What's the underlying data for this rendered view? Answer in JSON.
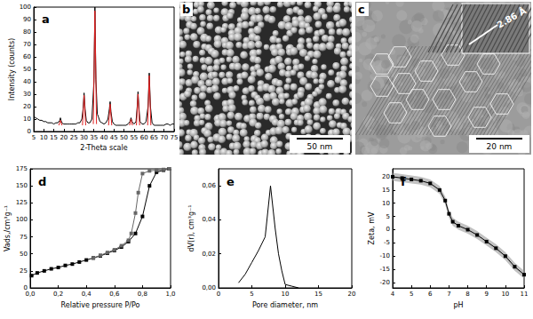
{
  "chart_data": [
    {
      "type": "line",
      "title": "a",
      "xlabel": "2-Theta scale",
      "ylabel": "Intensity (counts)",
      "xlim": [
        5,
        75
      ],
      "xticks": [
        5,
        10,
        15,
        20,
        25,
        30,
        35,
        40,
        45,
        50,
        55,
        60,
        65,
        70,
        75
      ],
      "ylim": [
        0,
        100
      ],
      "yticks": [
        0,
        10,
        20,
        30,
        40,
        50,
        60,
        70,
        80,
        90,
        100
      ],
      "grid": false,
      "series": [
        {
          "color": "#000000",
          "marker": "none",
          "line_style": "solid",
          "x": [
            5,
            6,
            7,
            8,
            9,
            10,
            11,
            12,
            13,
            14,
            15,
            16,
            17,
            18,
            18.3,
            18.6,
            19,
            20,
            21,
            22,
            23,
            24,
            25,
            26,
            27,
            28,
            29,
            29.6,
            30.1,
            30.6,
            31.2,
            32,
            33,
            34,
            35,
            35.5,
            36,
            36.7,
            37.2,
            38,
            39,
            40,
            41,
            42,
            42.7,
            43.1,
            43.5,
            44.2,
            45,
            46,
            47,
            48,
            49,
            50,
            51,
            52,
            53,
            53.5,
            54,
            55,
            56,
            56.6,
            57,
            57.4,
            58,
            59,
            60,
            61,
            62,
            62.6,
            63.2,
            64,
            65,
            66,
            67,
            68,
            69,
            70,
            71,
            72,
            73,
            74,
            75
          ],
          "values": [
            12,
            11,
            10,
            9,
            9,
            8,
            8,
            7,
            7,
            7,
            6,
            7,
            7,
            9,
            11,
            9,
            7,
            6,
            6,
            6,
            6,
            6,
            6,
            6,
            7,
            7,
            10,
            18,
            31,
            18,
            9,
            7,
            7,
            10,
            40,
            100,
            42,
            14,
            12,
            8,
            7,
            6,
            7,
            10,
            18,
            24,
            16,
            8,
            6,
            5,
            5,
            5,
            5,
            5,
            5,
            6,
            8,
            11,
            8,
            6,
            8,
            20,
            32,
            20,
            8,
            6,
            6,
            8,
            20,
            47,
            20,
            7,
            5,
            5,
            5,
            5,
            5,
            5,
            6,
            6,
            5,
            6,
            6
          ]
        },
        {
          "color": "#e02020",
          "marker": "none",
          "line_style": "solid",
          "x": [
            17.5,
            18.3,
            19.1,
            19.2,
            29.3,
            30.1,
            30.9,
            31,
            34.7,
            35.5,
            36.3,
            36.4,
            42.3,
            43.1,
            43.9,
            44,
            52.8,
            53.5,
            54.2,
            54.3,
            56.2,
            57,
            57.8,
            57.9,
            61.8,
            62.6,
            63.4
          ],
          "values": [
            5,
            9,
            5,
            null,
            5,
            29,
            5,
            null,
            6,
            97,
            6,
            null,
            5,
            22,
            5,
            null,
            5,
            10,
            5,
            null,
            5,
            30,
            5,
            null,
            5,
            45,
            5
          ]
        }
      ]
    },
    {
      "type": "line",
      "title": "d",
      "xlabel": "Relative pressure P/Po",
      "ylabel": "Vads,/cm³g⁻¹",
      "xlim": [
        0,
        1
      ],
      "xticks": [
        {
          "value": 0,
          "label": "0,0"
        },
        {
          "value": 0.2,
          "label": "0,2"
        },
        {
          "value": 0.4,
          "label": "0,4"
        },
        {
          "value": 0.6,
          "label": "0,6"
        },
        {
          "value": 0.8,
          "label": "0,8"
        },
        {
          "value": 1,
          "label": "1,0"
        }
      ],
      "ylim": [
        0,
        175
      ],
      "yticks": [
        0,
        25,
        50,
        75,
        100,
        125,
        150,
        175
      ],
      "grid": false,
      "series": [
        {
          "color": "#000000",
          "marker": "square",
          "line_style": "solid",
          "x": [
            0.01,
            0.05,
            0.1,
            0.15,
            0.2,
            0.25,
            0.3,
            0.35,
            0.4,
            0.45,
            0.5,
            0.55,
            0.6,
            0.65,
            0.7,
            0.75,
            0.8,
            0.85,
            0.9,
            0.95,
            0.99
          ],
          "values": [
            18,
            22,
            25,
            28,
            30,
            33,
            35,
            38,
            41,
            44,
            47,
            51,
            55,
            60,
            68,
            80,
            105,
            150,
            170,
            173,
            175
          ]
        },
        {
          "color": "#666666",
          "marker": "square",
          "line_style": "solid",
          "x": [
            0.99,
            0.95,
            0.9,
            0.85,
            0.8,
            0.77,
            0.75,
            0.72,
            0.7,
            0.65,
            0.6,
            0.55,
            0.5,
            0.45
          ],
          "values": [
            175,
            174,
            173,
            172,
            168,
            140,
            110,
            80,
            70,
            62,
            56,
            52,
            48,
            44
          ]
        }
      ]
    },
    {
      "type": "line",
      "title": "e",
      "xlabel": "Pore diameter, nm",
      "ylabel": "dV(r), cm³g⁻¹",
      "xlim": [
        0,
        20
      ],
      "xticks": [
        0,
        5,
        10,
        15,
        20
      ],
      "ylim": [
        0,
        0.07
      ],
      "yticks": [
        {
          "value": 0,
          "label": "0,00"
        },
        {
          "value": 0.02,
          "label": "0,02"
        },
        {
          "value": 0.04,
          "label": "0,04"
        },
        {
          "value": 0.06,
          "label": "0,06"
        }
      ],
      "grid": false,
      "series": [
        {
          "color": "#000000",
          "marker": "none",
          "line_style": "solid",
          "x": [
            3,
            4,
            5,
            6,
            7,
            7.8,
            8.5,
            9,
            9.5,
            10,
            11,
            12
          ],
          "values": [
            0.003,
            0.008,
            0.015,
            0.022,
            0.03,
            0.06,
            0.035,
            0.02,
            0.01,
            0.002,
            0.001,
            0
          ]
        }
      ]
    },
    {
      "type": "line",
      "title": "f",
      "xlabel": "pH",
      "ylabel": "Zeta, mV",
      "xlim": [
        4,
        11
      ],
      "xticks": [
        4,
        5,
        6,
        7,
        8,
        9,
        10,
        11
      ],
      "ylim": [
        -22,
        23
      ],
      "yticks": [
        -20,
        -15,
        -10,
        -5,
        0,
        5,
        10,
        15,
        20
      ],
      "grid": false,
      "series": [
        {
          "color": "#000000",
          "marker": "square",
          "line_style": "solid",
          "x": [
            4,
            4.5,
            5,
            5.5,
            6,
            6.5,
            6.8,
            7,
            7.2,
            7.5,
            8,
            8.5,
            9,
            9.5,
            10,
            10.5,
            11
          ],
          "values": [
            20,
            19.5,
            19,
            18.5,
            17.5,
            15,
            11,
            6,
            3,
            1.5,
            0,
            -2,
            -4.5,
            -7,
            -10,
            -14,
            -17
          ],
          "errors": [
            1.5,
            1.5,
            1.5,
            1.5,
            1.5,
            1.5,
            1.5,
            1.5,
            1.5,
            1.5,
            1.5,
            1.5,
            1.5,
            1.5,
            1.5,
            1.5,
            1.5
          ]
        }
      ]
    }
  ],
  "images": [
    {
      "title": "b",
      "scale_bar": "50 nm"
    },
    {
      "title": "c",
      "scale_bar": "20 nm",
      "inset_label": "2.86 Å"
    }
  ]
}
